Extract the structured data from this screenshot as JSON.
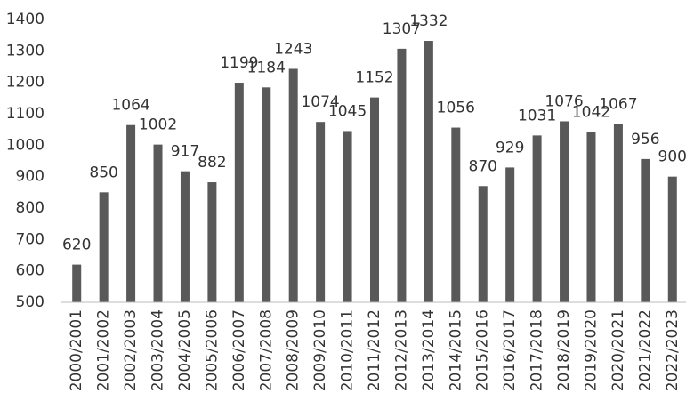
{
  "chart_data": {
    "type": "bar",
    "categories": [
      "2000/2001",
      "2001/2002",
      "2002/2003",
      "2003/2004",
      "2004/2005",
      "2005/2006",
      "2006/2007",
      "2007/2008",
      "2008/2009",
      "2009/2010",
      "2010/2011",
      "2011/2012",
      "2012/2013",
      "2013/2014",
      "2014/2015",
      "2015/2016",
      "2016/2017",
      "2017/2018",
      "2018/2019",
      "2019/2020",
      "2020/2021",
      "2021/2022",
      "2022/2023"
    ],
    "values": [
      620,
      850,
      1064,
      1002,
      917,
      882,
      1199,
      1184,
      1243,
      1074,
      1045,
      1152,
      1307,
      1332,
      1056,
      870,
      929,
      1031,
      1076,
      1042,
      1067,
      956,
      900
    ],
    "color": "#595959",
    "ylim": [
      500,
      1400
    ],
    "yticks": [
      500,
      600,
      700,
      800,
      900,
      1000,
      1100,
      1200,
      1300,
      1400
    ],
    "grid": false
  }
}
